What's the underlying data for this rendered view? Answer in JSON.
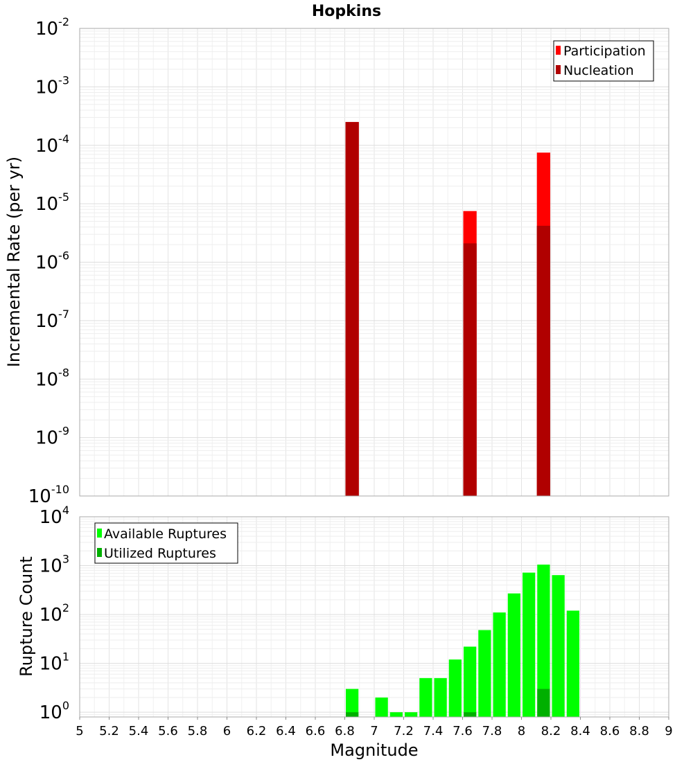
{
  "chart_data": [
    {
      "type": "bar",
      "title": "Hopkins",
      "ylabel": "Incremental Rate (per yr)",
      "yscale": "log",
      "ylim": [
        1e-10,
        0.01
      ],
      "xlim": [
        5,
        9
      ],
      "y_tick_labels": [
        {
          "base": "10",
          "exp": "-10"
        },
        {
          "base": "10",
          "exp": "-9"
        },
        {
          "base": "10",
          "exp": "-8"
        },
        {
          "base": "10",
          "exp": "-7"
        },
        {
          "base": "10",
          "exp": "-6"
        },
        {
          "base": "10",
          "exp": "-5"
        },
        {
          "base": "10",
          "exp": "-4"
        },
        {
          "base": "10",
          "exp": "-3"
        },
        {
          "base": "10",
          "exp": "-2"
        }
      ],
      "legend_position": "top-right",
      "series": [
        {
          "name": "Participation",
          "color": "#ff0000",
          "points": [
            {
              "x": 6.85,
              "y": 0.00025
            },
            {
              "x": 7.65,
              "y": 7.5e-06
            },
            {
              "x": 8.15,
              "y": 7.5e-05
            }
          ]
        },
        {
          "name": "Nucleation",
          "color": "#b00000",
          "points": [
            {
              "x": 6.85,
              "y": 0.00025
            },
            {
              "x": 7.65,
              "y": 2.1e-06
            },
            {
              "x": 8.15,
              "y": 4.2e-06
            }
          ]
        }
      ]
    },
    {
      "type": "bar",
      "xlabel": "Magnitude",
      "ylabel": "Rupture Count",
      "yscale": "log",
      "ylim": [
        0.8,
        10000
      ],
      "xlim": [
        5,
        9
      ],
      "x_ticks": [
        "5",
        "5.2",
        "5.4",
        "5.6",
        "5.8",
        "6",
        "6.2",
        "6.4",
        "6.6",
        "6.8",
        "7",
        "7.2",
        "7.4",
        "7.6",
        "7.8",
        "8",
        "8.2",
        "8.4",
        "8.6",
        "8.8",
        "9"
      ],
      "y_tick_labels": [
        {
          "base": "10",
          "exp": "0"
        },
        {
          "base": "10",
          "exp": "1"
        },
        {
          "base": "10",
          "exp": "2"
        },
        {
          "base": "10",
          "exp": "3"
        },
        {
          "base": "10",
          "exp": "4"
        }
      ],
      "legend_position": "top-left",
      "series": [
        {
          "name": "Available Ruptures",
          "color": "#00ff00",
          "points": [
            {
              "x": 6.85,
              "y": 3
            },
            {
              "x": 7.05,
              "y": 2
            },
            {
              "x": 7.15,
              "y": 1
            },
            {
              "x": 7.25,
              "y": 1
            },
            {
              "x": 7.35,
              "y": 5
            },
            {
              "x": 7.45,
              "y": 5
            },
            {
              "x": 7.55,
              "y": 12
            },
            {
              "x": 7.65,
              "y": 22
            },
            {
              "x": 7.75,
              "y": 48
            },
            {
              "x": 7.85,
              "y": 110
            },
            {
              "x": 7.95,
              "y": 270
            },
            {
              "x": 8.05,
              "y": 720
            },
            {
              "x": 8.15,
              "y": 1050
            },
            {
              "x": 8.25,
              "y": 640
            },
            {
              "x": 8.35,
              "y": 120
            }
          ]
        },
        {
          "name": "Utilized Ruptures",
          "color": "#00b000",
          "points": [
            {
              "x": 6.85,
              "y": 1
            },
            {
              "x": 7.65,
              "y": 1
            },
            {
              "x": 8.15,
              "y": 3
            }
          ]
        }
      ]
    }
  ]
}
